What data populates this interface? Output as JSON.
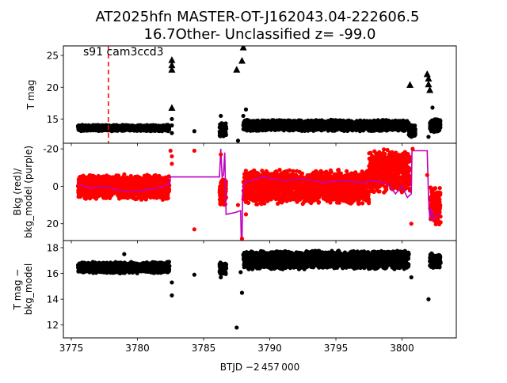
{
  "title_line1": "AT2025hfn  MASTER-OT-J162043.04-222606.5",
  "title_line2": "16.7Other- Unclassified z= -99.0",
  "annotation": "s91 cam3ccd3",
  "xlabel": "BTJD −2 457 000",
  "colors": {
    "bkg": "#ff0000",
    "model": "#bf00bf",
    "mag": "#000000",
    "marker_line": "#ff0000"
  },
  "chart_data": [
    {
      "type": "scatter",
      "ylabel": "T mag",
      "xlim": [
        3774.4,
        3804.1
      ],
      "ylim": [
        26.5,
        11.2
      ],
      "yticks": [
        15,
        20,
        25
      ],
      "vline_x": 3777.8,
      "bands": [
        {
          "x0": 3775.5,
          "x1": 3782.4,
          "center": 13.6,
          "half": 0.5
        },
        {
          "x0": 3786.2,
          "x1": 3786.7,
          "center": 13.3,
          "half": 1.2
        },
        {
          "x0": 3788.0,
          "x1": 3800.5,
          "center": 14.0,
          "half": 0.9
        },
        {
          "x0": 3800.5,
          "x1": 3801.0,
          "center": 13.2,
          "half": 1.0
        },
        {
          "x0": 3802.1,
          "x1": 3802.9,
          "center": 14.0,
          "half": 1.2
        }
      ],
      "points": [
        {
          "x": 3782.6,
          "y": 12.8
        },
        {
          "x": 3782.6,
          "y": 14.0
        },
        {
          "x": 3782.6,
          "y": 15.0
        },
        {
          "x": 3784.3,
          "y": 13.1
        },
        {
          "x": 3786.3,
          "y": 15.5
        },
        {
          "x": 3787.6,
          "y": 11.6
        },
        {
          "x": 3788.0,
          "y": 15.5
        },
        {
          "x": 3788.2,
          "y": 16.5
        },
        {
          "x": 3800.7,
          "y": 12.2
        },
        {
          "x": 3802.0,
          "y": 12.2
        },
        {
          "x": 3802.3,
          "y": 16.8
        }
      ],
      "triangles": [
        {
          "x": 3782.6,
          "y": 16.8
        },
        {
          "x": 3782.6,
          "y": 22.8
        },
        {
          "x": 3782.6,
          "y": 23.5
        },
        {
          "x": 3782.6,
          "y": 24.3
        },
        {
          "x": 3787.5,
          "y": 22.8
        },
        {
          "x": 3787.9,
          "y": 24.2
        },
        {
          "x": 3788.0,
          "y": 26.3
        },
        {
          "x": 3800.6,
          "y": 20.4
        },
        {
          "x": 3801.9,
          "y": 22.1
        },
        {
          "x": 3802.0,
          "y": 20.5
        },
        {
          "x": 3802.0,
          "y": 21.4
        },
        {
          "x": 3802.1,
          "y": 19.6
        }
      ]
    },
    {
      "type": "scatter",
      "ylabel": "Bkg (red)/\nbkg_model (purple)",
      "xlim": [
        3774.4,
        3804.1
      ],
      "ylim": [
        -23,
        29
      ],
      "yticks": [
        -20,
        0,
        20
      ],
      "bands": [
        {
          "x0": 3775.5,
          "x1": 3782.4,
          "center": 0.5,
          "half": 7.0
        },
        {
          "x0": 3786.2,
          "x1": 3786.7,
          "center": 3.0,
          "half": 8.0
        },
        {
          "x0": 3788.0,
          "x1": 3797.5,
          "center": 0.5,
          "half": 9.5
        },
        {
          "x0": 3797.5,
          "x1": 3800.6,
          "center": -8.0,
          "half": 12.0
        },
        {
          "x0": 3802.1,
          "x1": 3802.9,
          "center": 10.0,
          "half": 11.0
        }
      ],
      "points": [
        {
          "x": 3782.5,
          "y": -19
        },
        {
          "x": 3782.6,
          "y": -16
        },
        {
          "x": 3782.6,
          "y": -12
        },
        {
          "x": 3784.3,
          "y": 23
        },
        {
          "x": 3784.3,
          "y": -19
        },
        {
          "x": 3786.3,
          "y": -17
        },
        {
          "x": 3787.6,
          "y": 10
        },
        {
          "x": 3787.9,
          "y": 28
        },
        {
          "x": 3788.2,
          "y": 15
        },
        {
          "x": 3800.7,
          "y": 20
        },
        {
          "x": 3800.8,
          "y": -20
        },
        {
          "x": 3801.9,
          "y": -6
        }
      ],
      "model_line": {
        "x": [
          3775.5,
          3776.5,
          3777.5,
          3778.5,
          3779.5,
          3780.5,
          3781.5,
          3782.4,
          3782.5,
          3786.2,
          3786.3,
          3786.4,
          3786.5,
          3786.6,
          3786.7,
          3787.4,
          3787.8,
          3787.85,
          3787.9,
          3787.95,
          3788.1,
          3789.5,
          3791.0,
          3792.5,
          3794.0,
          3795.5,
          3797.0,
          3798.0,
          3799.0,
          3799.5,
          3800.0,
          3800.4,
          3800.7,
          3800.75,
          3801.9,
          3802.0,
          3802.1,
          3802.2,
          3802.4,
          3802.6,
          3802.9
        ],
        "y": [
          -1,
          1,
          0,
          2,
          3,
          2,
          1,
          -1,
          -5,
          -5,
          -20,
          -5,
          -6,
          -18,
          15,
          14,
          13,
          30,
          30,
          3,
          -2,
          -5,
          -3,
          -4,
          -2,
          -3,
          -2,
          -3,
          -1,
          4,
          0,
          6,
          4,
          -19,
          -19,
          6,
          18,
          12,
          18,
          16,
          15
        ]
      }
    },
    {
      "type": "scatter",
      "ylabel": "T mag −\nbkg_model",
      "xlim": [
        3774.4,
        3804.1
      ],
      "ylim": [
        18.55,
        11.0
      ],
      "yticks": [
        12,
        14,
        16,
        18
      ],
      "bands": [
        {
          "x0": 3775.5,
          "x1": 3782.4,
          "center": 16.45,
          "half": 0.45
        },
        {
          "x0": 3786.2,
          "x1": 3786.7,
          "center": 16.4,
          "half": 0.5
        },
        {
          "x0": 3788.0,
          "x1": 3800.5,
          "center": 17.05,
          "half": 0.75
        },
        {
          "x0": 3802.1,
          "x1": 3802.9,
          "center": 17.0,
          "half": 0.6
        }
      ],
      "points": [
        {
          "x": 3782.6,
          "y": 14.3
        },
        {
          "x": 3782.6,
          "y": 15.3
        },
        {
          "x": 3784.3,
          "y": 15.9
        },
        {
          "x": 3786.3,
          "y": 15.7
        },
        {
          "x": 3787.5,
          "y": 11.8
        },
        {
          "x": 3787.9,
          "y": 14.5
        },
        {
          "x": 3787.8,
          "y": 16.1
        },
        {
          "x": 3800.7,
          "y": 15.7
        },
        {
          "x": 3802.0,
          "y": 14.0
        },
        {
          "x": 3779.0,
          "y": 17.5
        }
      ]
    }
  ],
  "xticks": [
    3775,
    3780,
    3785,
    3790,
    3795,
    3800
  ]
}
